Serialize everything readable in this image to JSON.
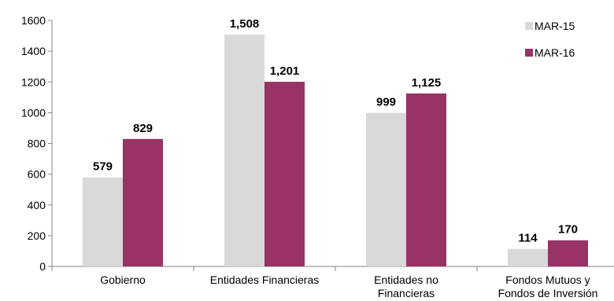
{
  "chart_data": {
    "type": "bar",
    "title": "",
    "xlabel": "",
    "ylabel": "",
    "ylim": [
      0,
      1600
    ],
    "yticks": [
      0,
      200,
      400,
      600,
      800,
      1000,
      1200,
      1400,
      1600
    ],
    "grid": false,
    "legend_position": "top-right",
    "categories": [
      [
        "Gobierno"
      ],
      [
        "Entidades Financieras"
      ],
      [
        "Entidades no",
        "Financieras"
      ],
      [
        "Fondos Mutuos y",
        "Fondos de Inversión"
      ]
    ],
    "series": [
      {
        "name": "MAR-15",
        "color": "#d9d9d9",
        "values": [
          579,
          1508,
          999,
          114
        ],
        "labels": [
          "579",
          "1,508",
          "999",
          "114"
        ]
      },
      {
        "name": "MAR-16",
        "color": "#993366",
        "values": [
          829,
          1201,
          1125,
          170
        ],
        "labels": [
          "829",
          "1,201",
          "1,125",
          "170"
        ]
      }
    ]
  }
}
